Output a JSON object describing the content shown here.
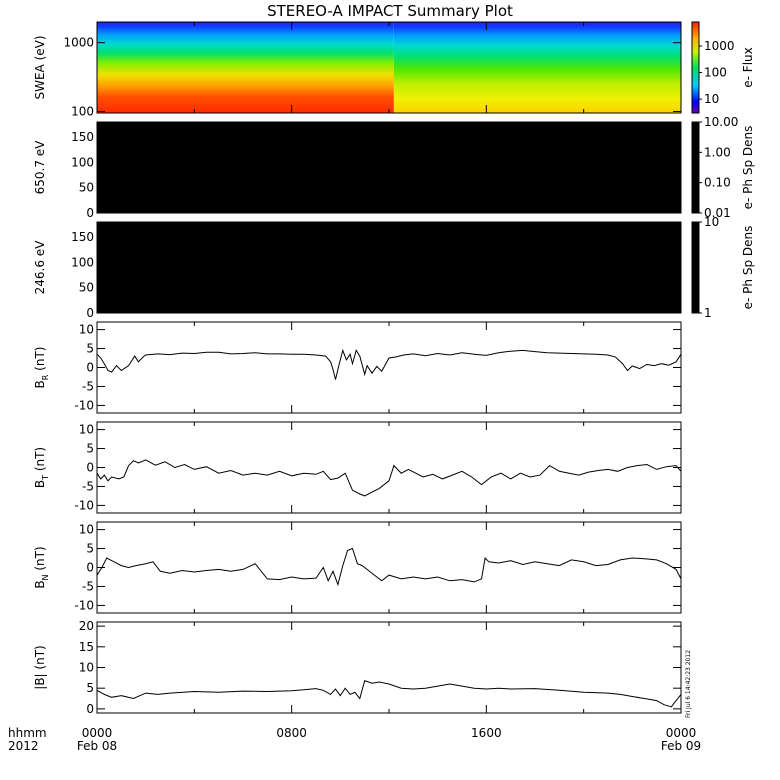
{
  "title": "STEREO-A IMPACT Summary Plot",
  "footer": {
    "left_label_1": "hhmm",
    "left_label_2": "2012",
    "date_start": "Feb 08",
    "date_end": "Feb 09",
    "timestamp": "Fri Jul  6 14:42:23 2012"
  },
  "colors": {
    "line": "#000000",
    "panel_fill": "#000000",
    "frame": "#000000"
  },
  "chart_data": [
    {
      "type": "heatmap",
      "ylabel": "SWEA (eV)",
      "ylog": true,
      "ylim": [
        95,
        2000
      ],
      "yticks": [
        100,
        1000
      ],
      "ytick_labels": [
        "100",
        "1000"
      ],
      "colorbar": {
        "label": "e- Flux",
        "log": true,
        "range": [
          3,
          8000
        ],
        "ticks": [
          10,
          100,
          1000
        ],
        "tick_labels": [
          "10",
          "100",
          "1000"
        ]
      },
      "xlim": [
        0,
        24
      ],
      "xticks": [
        0,
        8,
        16,
        24
      ],
      "xtick_labels": [
        "0000",
        "0800",
        "1600",
        "0000"
      ],
      "transition_hour": 12.2,
      "description_profile": {
        "before": {
          "flux_at_100eV": 7000,
          "flux_at_2000eV": 4
        },
        "after": {
          "flux_at_100eV": 800,
          "flux_at_2000eV": 3
        }
      }
    },
    {
      "type": "heatmap",
      "ylabel": "650.7 eV",
      "ylim": [
        0,
        180
      ],
      "yticks": [
        0,
        50,
        100,
        150
      ],
      "ytick_labels": [
        "0",
        "50",
        "100",
        "150"
      ],
      "fill": "black",
      "colorbar": {
        "label": "e- Ph Sp Dens",
        "log": true,
        "range": [
          0.01,
          10
        ],
        "ticks": [
          0.01,
          0.1,
          1,
          10
        ],
        "tick_labels": [
          "0.01",
          "0.10",
          "1.00",
          "10.00"
        ]
      }
    },
    {
      "type": "heatmap",
      "ylabel": "246.6 eV",
      "ylim": [
        0,
        180
      ],
      "yticks": [
        0,
        50,
        100,
        150
      ],
      "ytick_labels": [
        "0",
        "50",
        "100",
        "150"
      ],
      "fill": "black",
      "colorbar": {
        "label": "e- Ph Sp Dens",
        "log": true,
        "range": [
          1,
          10
        ],
        "ticks": [
          1,
          10
        ],
        "tick_labels": [
          "1",
          "10"
        ]
      }
    },
    {
      "type": "line",
      "ylabel_main": "B",
      "ylabel_sub": "R",
      "ylabel_unit": " (nT)",
      "ylim": [
        -12,
        12
      ],
      "yticks": [
        -10,
        -5,
        0,
        5,
        10
      ],
      "ytick_labels": [
        "-10",
        "-5",
        "0",
        "5",
        "10"
      ],
      "xlim": [
        0,
        24
      ],
      "x": [
        0,
        0.15,
        0.3,
        0.45,
        0.6,
        0.8,
        1.0,
        1.3,
        1.55,
        1.7,
        1.9,
        2.0,
        2.5,
        3,
        3.5,
        4,
        4.5,
        5,
        5.5,
        6,
        6.5,
        7,
        7.5,
        8,
        8.5,
        9,
        9.4,
        9.6,
        9.7,
        9.8,
        9.95,
        10.1,
        10.25,
        10.4,
        10.5,
        10.65,
        10.8,
        11.0,
        11.1,
        11.3,
        11.5,
        11.7,
        12.0,
        12.3,
        12.6,
        13,
        13.5,
        14,
        14.5,
        15,
        15.5,
        16,
        16.5,
        17,
        17.5,
        18,
        18.5,
        19,
        19.5,
        20,
        20.5,
        21,
        21.3,
        21.6,
        21.8,
        22.0,
        22.3,
        22.6,
        22.9,
        23.2,
        23.5,
        23.8,
        24
      ],
      "y": [
        3.5,
        2.5,
        1.0,
        -0.8,
        -1.2,
        0.5,
        -0.8,
        0.5,
        3.0,
        1.5,
        2.8,
        3.3,
        3.6,
        3.4,
        3.8,
        3.7,
        4.0,
        4.0,
        3.6,
        3.7,
        3.9,
        3.6,
        3.6,
        3.5,
        3.5,
        3.3,
        3.0,
        1.5,
        -0.5,
        -3.2,
        0.8,
        4.5,
        2.0,
        3.5,
        1.0,
        4.5,
        3.0,
        -1.8,
        0.5,
        -1.5,
        0.3,
        -1.0,
        2.5,
        2.8,
        3.3,
        3.6,
        3.1,
        3.7,
        3.3,
        3.9,
        3.5,
        3.2,
        3.9,
        4.3,
        4.5,
        4.2,
        3.9,
        3.8,
        3.7,
        3.6,
        3.5,
        3.3,
        2.8,
        1.0,
        -0.8,
        0.4,
        -0.3,
        0.8,
        0.5,
        1.0,
        0.6,
        1.5,
        3.5
      ]
    },
    {
      "type": "line",
      "ylabel_main": "B",
      "ylabel_sub": "T",
      "ylabel_unit": " (nT)",
      "ylim": [
        -12,
        12
      ],
      "yticks": [
        -10,
        -5,
        0,
        5,
        10
      ],
      "ytick_labels": [
        "-10",
        "-5",
        "0",
        "5",
        "10"
      ],
      "xlim": [
        0,
        24
      ],
      "x": [
        0,
        0.15,
        0.3,
        0.45,
        0.6,
        0.9,
        1.1,
        1.3,
        1.5,
        1.7,
        2.0,
        2.4,
        2.8,
        3.2,
        3.6,
        4.0,
        4.5,
        5.0,
        5.5,
        6.0,
        6.5,
        7.0,
        7.5,
        8.0,
        8.5,
        9.0,
        9.3,
        9.6,
        9.9,
        10.2,
        10.5,
        10.8,
        11.0,
        11.3,
        11.6,
        12.0,
        12.2,
        12.5,
        12.8,
        13.1,
        13.4,
        13.8,
        14.2,
        14.6,
        15.0,
        15.4,
        15.8,
        16.2,
        16.6,
        17.0,
        17.4,
        17.8,
        18.2,
        18.6,
        19.0,
        19.4,
        19.8,
        20.2,
        20.6,
        21.0,
        21.4,
        21.8,
        22.2,
        22.6,
        23.0,
        23.4,
        23.8,
        24
      ],
      "y": [
        -1.5,
        -3.0,
        -2.0,
        -3.5,
        -2.5,
        -3.0,
        -2.5,
        0.5,
        1.8,
        1.2,
        2.0,
        0.6,
        1.5,
        0.0,
        0.8,
        -0.5,
        0.2,
        -1.5,
        -0.8,
        -2.0,
        -1.5,
        -2.0,
        -1.0,
        -2.2,
        -1.5,
        -1.8,
        -1.0,
        -3.2,
        -2.8,
        -1.5,
        -6.0,
        -7.0,
        -7.5,
        -6.5,
        -5.5,
        -3.5,
        0.5,
        -1.5,
        -0.5,
        -1.5,
        -2.5,
        -1.8,
        -3.0,
        -2.0,
        -1.0,
        -2.5,
        -4.5,
        -2.5,
        -1.5,
        -3.0,
        -1.5,
        -2.5,
        -2.0,
        0.5,
        -1.0,
        -1.5,
        -2.0,
        -1.2,
        -0.8,
        -0.5,
        -1.0,
        0.0,
        0.5,
        0.8,
        -0.5,
        0.2,
        0.5,
        -1.0
      ]
    },
    {
      "type": "line",
      "ylabel_main": "B",
      "ylabel_sub": "N",
      "ylabel_unit": " (nT)",
      "ylim": [
        -12,
        12
      ],
      "yticks": [
        -10,
        -5,
        0,
        5,
        10
      ],
      "ytick_labels": [
        "-10",
        "-5",
        "0",
        "5",
        "10"
      ],
      "xlim": [
        0,
        24
      ],
      "x": [
        0,
        0.2,
        0.4,
        0.7,
        1.0,
        1.3,
        1.6,
        2.0,
        2.3,
        2.6,
        3.0,
        3.5,
        4.0,
        4.5,
        5.0,
        5.5,
        6.0,
        6.5,
        7.0,
        7.5,
        8.0,
        8.5,
        9.0,
        9.3,
        9.5,
        9.7,
        9.9,
        10.1,
        10.3,
        10.5,
        10.7,
        10.9,
        11.1,
        11.4,
        11.7,
        12.0,
        12.5,
        13.0,
        13.5,
        14.0,
        14.5,
        15.0,
        15.5,
        15.8,
        15.95,
        16.1,
        16.5,
        17.0,
        17.5,
        18.0,
        18.5,
        19.0,
        19.5,
        20.0,
        20.5,
        21.0,
        21.5,
        22.0,
        22.5,
        23.0,
        23.4,
        23.8,
        24
      ],
      "y": [
        -2.0,
        0.0,
        2.5,
        1.5,
        0.5,
        0.0,
        0.5,
        1.0,
        1.5,
        -1.0,
        -1.5,
        -0.8,
        -1.2,
        -0.8,
        -0.5,
        -1.0,
        -0.5,
        1.0,
        -3.0,
        -3.2,
        -2.5,
        -3.0,
        -2.8,
        0.0,
        -3.5,
        -1.0,
        -4.5,
        0.5,
        4.5,
        5.0,
        1.0,
        0.5,
        -0.5,
        -2.0,
        -3.5,
        -2.0,
        -3.0,
        -2.5,
        -3.0,
        -2.5,
        -3.5,
        -3.2,
        -3.8,
        -3.0,
        2.5,
        1.5,
        1.2,
        1.8,
        0.8,
        1.5,
        1.0,
        0.5,
        2.0,
        1.5,
        0.5,
        0.8,
        2.0,
        2.5,
        2.3,
        2.0,
        1.0,
        -0.5,
        -3.0
      ]
    },
    {
      "type": "line",
      "ylabel_main": "|B|",
      "ylabel_sub": "",
      "ylabel_unit": " (nT)",
      "ylim": [
        -1,
        21
      ],
      "yticks": [
        0,
        5,
        10,
        15,
        20
      ],
      "ytick_labels": [
        "0",
        "5",
        "10",
        "15",
        "20"
      ],
      "xlim": [
        0,
        24
      ],
      "x": [
        0,
        0.3,
        0.6,
        1.0,
        1.5,
        2.0,
        2.5,
        3.0,
        4.0,
        5.0,
        6.0,
        7.0,
        8.0,
        8.5,
        9.0,
        9.3,
        9.6,
        9.8,
        10.0,
        10.2,
        10.4,
        10.6,
        10.8,
        11.0,
        11.3,
        11.6,
        12.0,
        12.5,
        13.0,
        13.5,
        14.0,
        14.5,
        15.0,
        15.5,
        16.0,
        16.5,
        17.0,
        18.0,
        19.0,
        20.0,
        21.0,
        21.5,
        22.0,
        22.5,
        23.0,
        23.3,
        23.6,
        23.8,
        24
      ],
      "y": [
        4.5,
        3.5,
        2.8,
        3.2,
        2.5,
        3.8,
        3.5,
        3.8,
        4.2,
        4.0,
        4.3,
        4.2,
        4.4,
        4.6,
        4.9,
        4.5,
        3.5,
        4.8,
        3.2,
        5.0,
        3.5,
        4.0,
        2.5,
        6.8,
        6.2,
        6.5,
        6.0,
        5.0,
        4.8,
        5.0,
        5.5,
        6.0,
        5.5,
        5.0,
        4.8,
        5.0,
        4.8,
        4.9,
        4.5,
        4.0,
        3.8,
        3.5,
        3.0,
        2.5,
        2.0,
        1.0,
        0.5,
        2.0,
        3.5
      ]
    }
  ]
}
